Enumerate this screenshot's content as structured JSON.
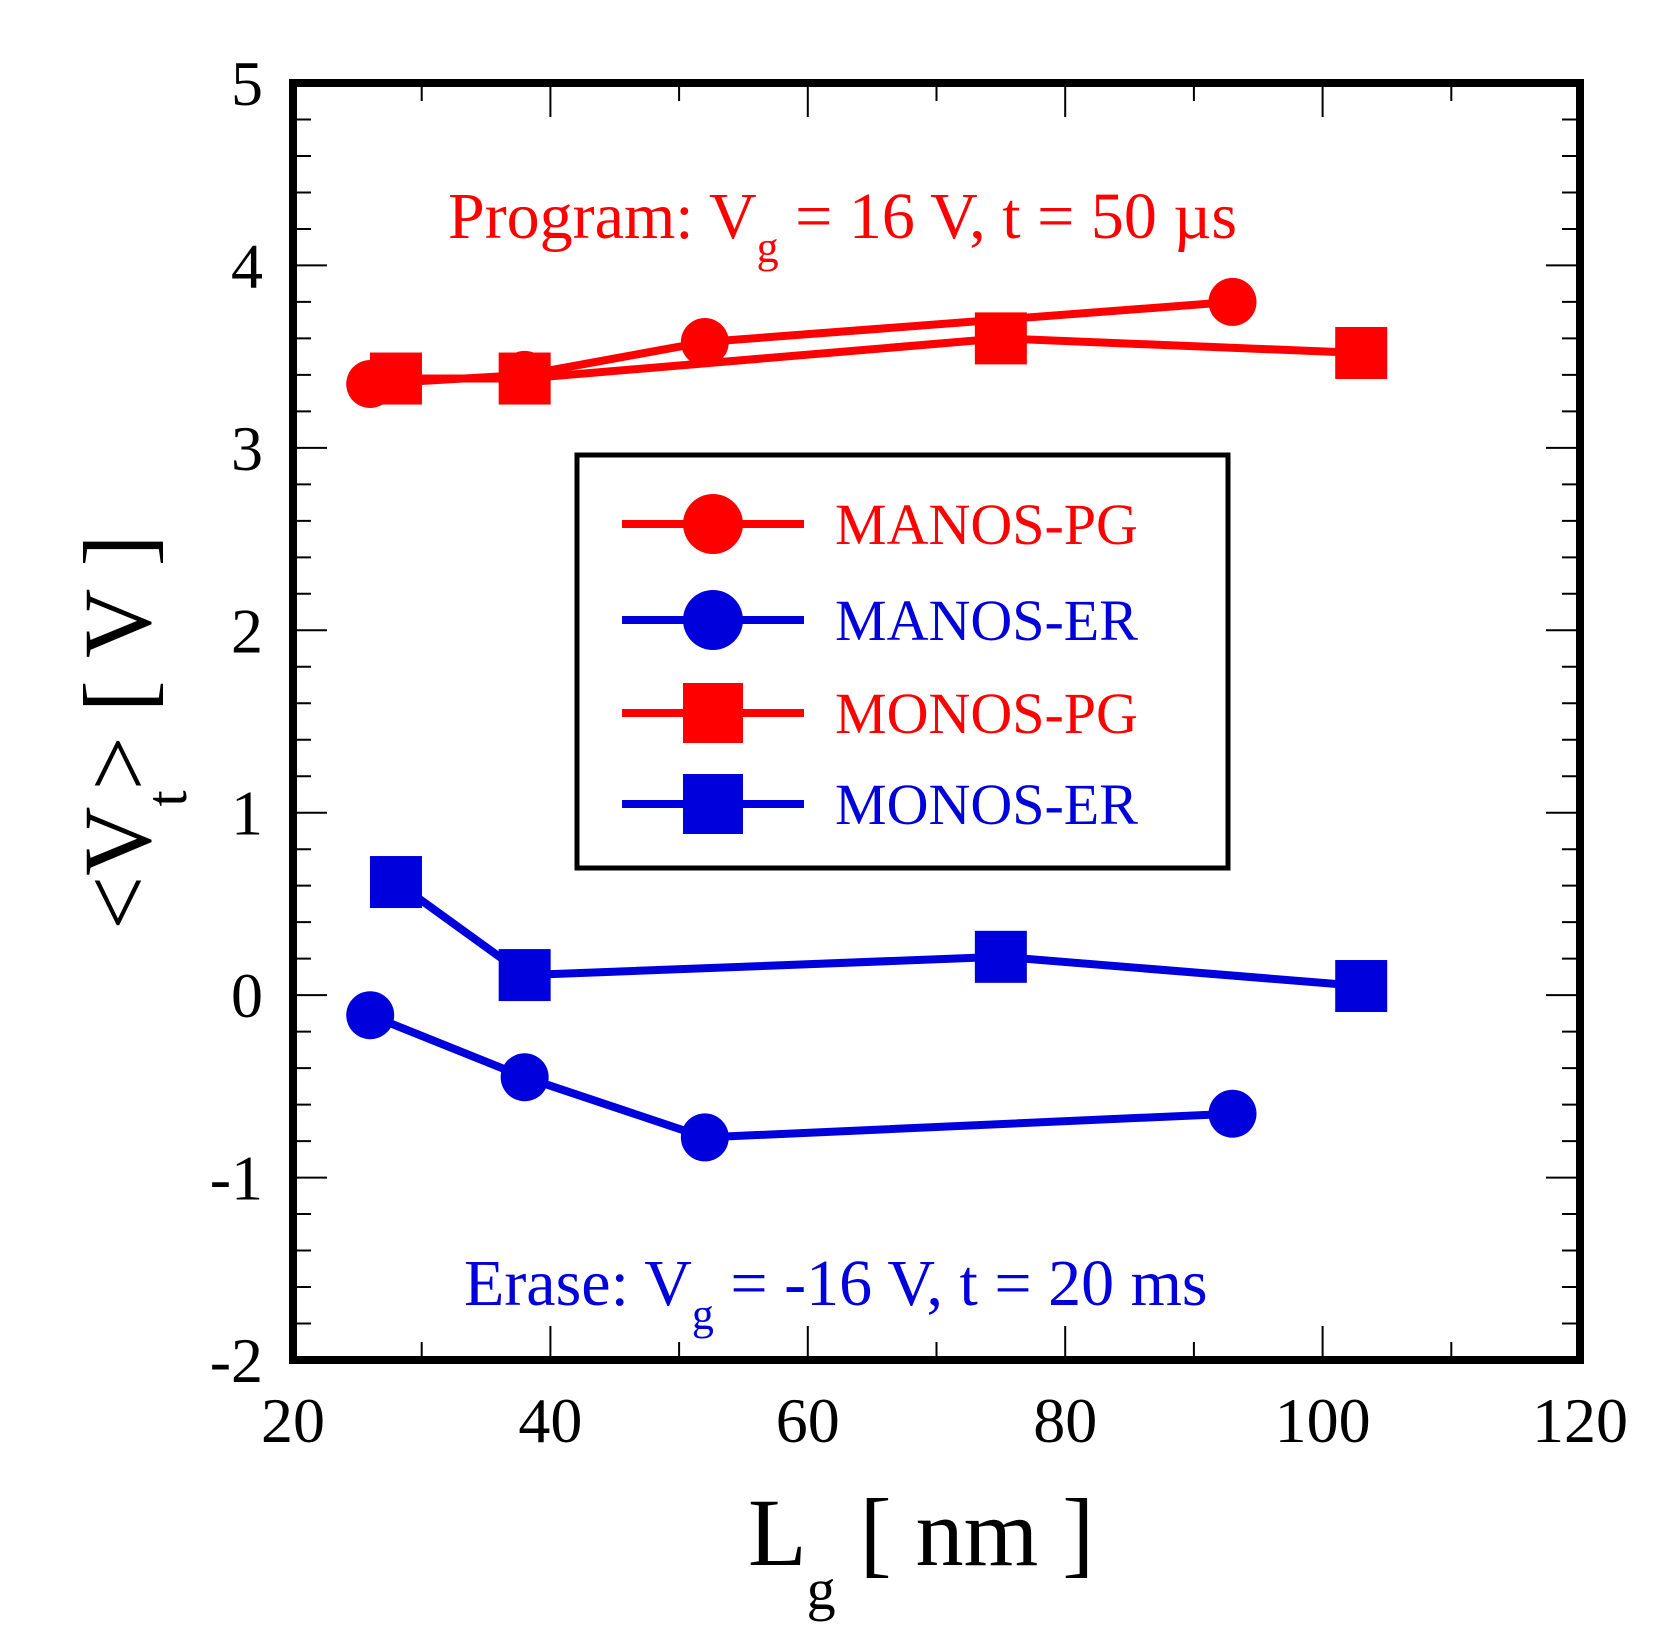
{
  "chart_data": {
    "type": "line",
    "xlabel": {
      "main": "L",
      "sub": "g",
      "unit": "[ nm ]"
    },
    "ylabel": {
      "open": "<V",
      "sub": "t",
      "close": ">",
      "unit": "[ V ]"
    },
    "xlim": [
      20,
      120
    ],
    "ylim": [
      -2,
      5
    ],
    "xticks": [
      20,
      40,
      60,
      80,
      100,
      120
    ],
    "yticks": [
      -2,
      -1,
      0,
      1,
      2,
      3,
      4,
      5
    ],
    "x_minor_step": 10,
    "y_minor_step": 0.2,
    "series": [
      {
        "name": "MANOS-PG",
        "color": "#ff0000",
        "marker": "circle",
        "x": [
          26,
          38,
          52,
          93
        ],
        "y": [
          3.35,
          3.4,
          3.58,
          3.8
        ]
      },
      {
        "name": "MANOS-ER",
        "color": "#0000dd",
        "marker": "circle",
        "x": [
          26,
          38,
          52,
          93
        ],
        "y": [
          -0.11,
          -0.45,
          -0.78,
          -0.65
        ]
      },
      {
        "name": "MONOS-PG",
        "color": "#ff0000",
        "marker": "square",
        "x": [
          28,
          38,
          75,
          103
        ],
        "y": [
          3.38,
          3.38,
          3.6,
          3.52
        ]
      },
      {
        "name": "MONOS-ER",
        "color": "#0000dd",
        "marker": "square",
        "x": [
          28,
          38,
          75,
          103
        ],
        "y": [
          0.62,
          0.11,
          0.21,
          0.05
        ]
      }
    ],
    "annotations": [
      {
        "id": "program",
        "color": "#ff0000",
        "prefix": "Program: V",
        "sub": "g",
        "suffix": " = 16 V, t = 50 µs"
      },
      {
        "id": "erase",
        "color": "#0000dd",
        "prefix": "Erase: V",
        "sub": "g",
        "suffix": " = -16 V, t = 20 ms"
      }
    ],
    "legend": {
      "position": "center",
      "entries": [
        "MANOS-PG",
        "MANOS-ER",
        "MONOS-PG",
        "MONOS-ER"
      ]
    }
  }
}
